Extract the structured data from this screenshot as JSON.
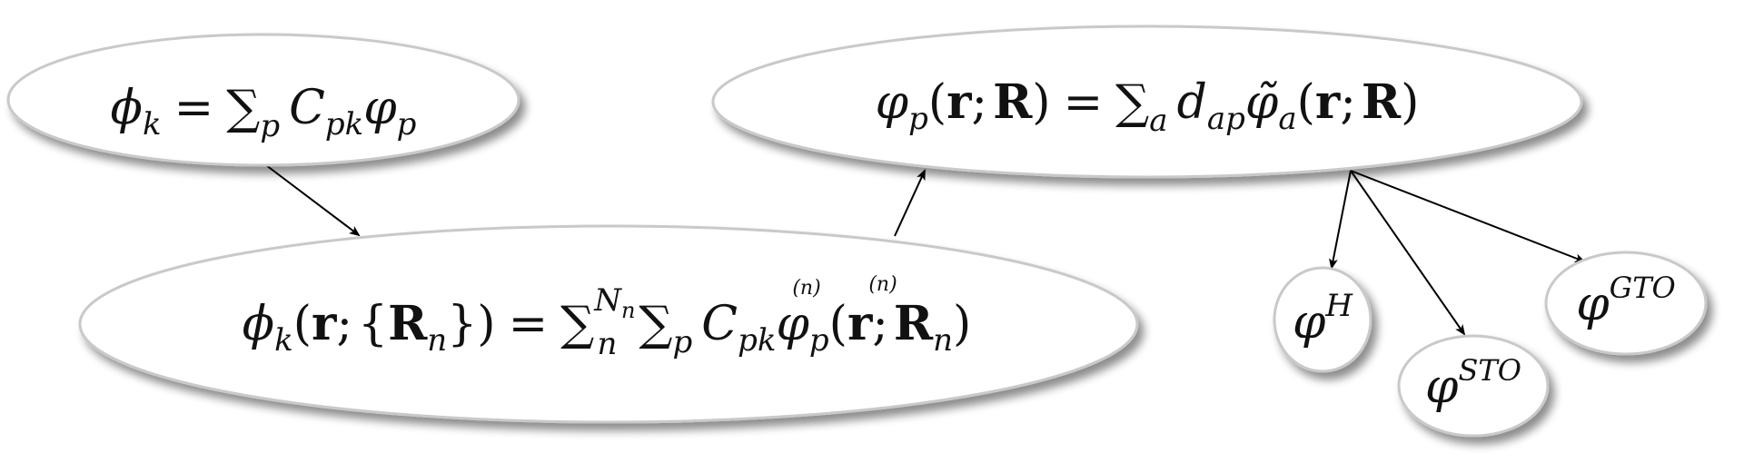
{
  "nodes": {
    "phi_k": {
      "phi": "ϕ",
      "k": "k",
      "eq": "=",
      "sum": "∑",
      "p": "p",
      "C": "C",
      "pk": "pk",
      "varphi": "φ",
      "p2": "p"
    },
    "varphi_p": {
      "varphi": "φ",
      "p": "p",
      "lpar": "(",
      "r": "r",
      "semi": ";",
      "R": "R",
      "rpar": ")",
      "eq": "=",
      "sum": "∑",
      "a": "a",
      "d": "d",
      "ap": "ap",
      "tildevarphi": "φ̃",
      "a2": "a",
      "lpar2": "(",
      "r2": "r",
      "semi2": ";",
      "R2": "R",
      "rpar2": ")"
    },
    "phi_k_R": {
      "phi": "ϕ",
      "k": "k",
      "lpar": "(",
      "r": "r",
      "semi": ";",
      "lbrace": "{",
      "R": "R",
      "n": "n",
      "rbrace": "}",
      "rpar": ")",
      "eq": "=",
      "sum1": "∑",
      "Nn_N": "N",
      "Nn_n": "n",
      "sub_n": "n",
      "sum2": "∑",
      "p": "p",
      "C": "C",
      "pk": "pk",
      "sup_n1": "(n)",
      "varphi": "φ",
      "sup_n2": "(n)",
      "p2": "p",
      "lpar2": "(",
      "r2": "r",
      "semi2": ";",
      "R2": "R",
      "n2": "n",
      "rpar2": ")"
    },
    "varphi_H": {
      "varphi": "φ",
      "sup": "H"
    },
    "varphi_STO": {
      "varphi": "φ",
      "sup": "STO"
    },
    "varphi_GTO": {
      "varphi": "φ",
      "sup": "GTO"
    }
  },
  "edges": [
    {
      "from": "phi_k",
      "to": "phi_k_R"
    },
    {
      "from": "phi_k_R",
      "to": "varphi_p"
    },
    {
      "from": "varphi_p",
      "to": "varphi_H"
    },
    {
      "from": "varphi_p",
      "to": "varphi_STO"
    },
    {
      "from": "varphi_p",
      "to": "varphi_GTO"
    }
  ]
}
